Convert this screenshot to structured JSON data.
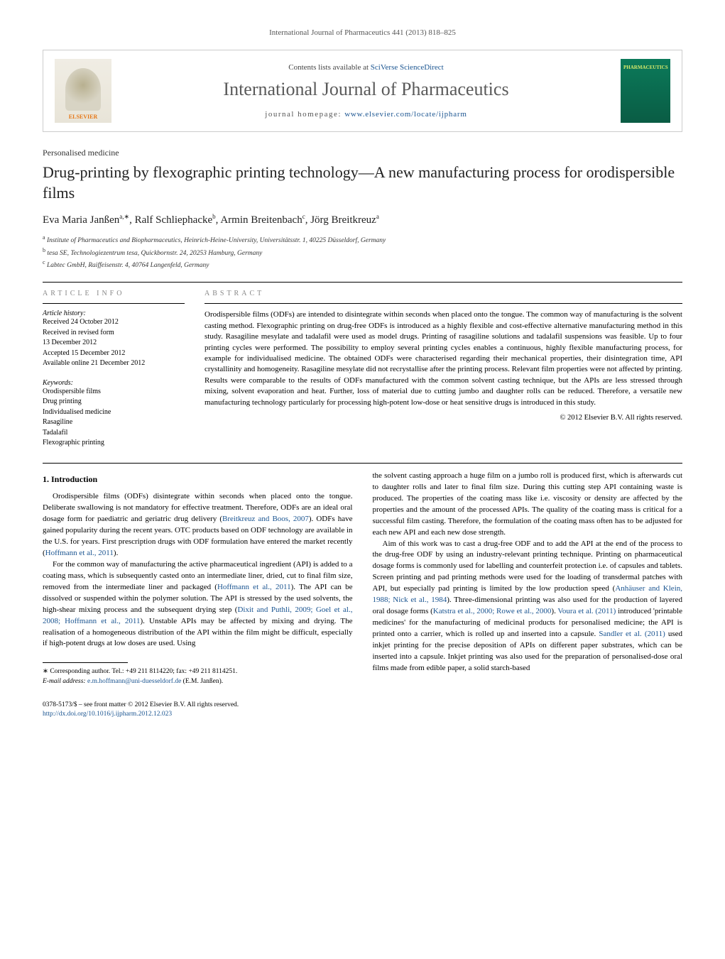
{
  "header": {
    "citation_prefix": "International Journal of Pharmaceutics 441 (2013) 818–825",
    "contents_prefix": "Contents lists available at ",
    "contents_link": "SciVerse ScienceDirect",
    "journal_title": "International Journal of Pharmaceutics",
    "homepage_prefix": "journal homepage: ",
    "homepage_link": "www.elsevier.com/locate/ijpharm",
    "publisher_logo_label": "ELSEVIER",
    "cover_label": "PHARMACEUTICS"
  },
  "article": {
    "section": "Personalised medicine",
    "title": "Drug-printing by flexographic printing technology—A new manufacturing process for orodispersible films",
    "authors_html": "Eva Maria Janßen|a,∗|, Ralf Schliephacke|b|, Armin Breitenbach|c|, Jörg Breitkreuz|a|",
    "authors": [
      {
        "name": "Eva Maria Janßen",
        "marks": "a,∗"
      },
      {
        "name": "Ralf Schliephacke",
        "marks": "b"
      },
      {
        "name": "Armin Breitenbach",
        "marks": "c"
      },
      {
        "name": "Jörg Breitkreuz",
        "marks": "a"
      }
    ],
    "affiliations": [
      {
        "mark": "a",
        "text": "Institute of Pharmaceutics and Biopharmaceutics, Heinrich-Heine-University, Universitätsstr. 1, 40225 Düsseldorf, Germany"
      },
      {
        "mark": "b",
        "text": "tesa SE, Technologiezentrum tesa, Quickbornstr. 24, 20253 Hamburg, Germany"
      },
      {
        "mark": "c",
        "text": "Labtec GmbH, Raiffeisenstr. 4, 40764 Langenfeld, Germany"
      }
    ]
  },
  "info": {
    "heading": "ARTICLE INFO",
    "history_label": "Article history:",
    "history": [
      "Received 24 October 2012",
      "Received in revised form",
      "13 December 2012",
      "Accepted 15 December 2012",
      "Available online 21 December 2012"
    ],
    "keywords_label": "Keywords:",
    "keywords": [
      "Orodispersible films",
      "Drug printing",
      "Individualised medicine",
      "Rasagiline",
      "Tadalafil",
      "Flexographic printing"
    ]
  },
  "abstract": {
    "heading": "ABSTRACT",
    "text": "Orodispersible films (ODFs) are intended to disintegrate within seconds when placed onto the tongue. The common way of manufacturing is the solvent casting method. Flexographic printing on drug-free ODFs is introduced as a highly flexible and cost-effective alternative manufacturing method in this study. Rasagiline mesylate and tadalafil were used as model drugs. Printing of rasagiline solutions and tadalafil suspensions was feasible. Up to four printing cycles were performed. The possibility to employ several printing cycles enables a continuous, highly flexible manufacturing process, for example for individualised medicine. The obtained ODFs were characterised regarding their mechanical properties, their disintegration time, API crystallinity and homogeneity. Rasagiline mesylate did not recrystallise after the printing process. Relevant film properties were not affected by printing. Results were comparable to the results of ODFs manufactured with the common solvent casting technique, but the APIs are less stressed through mixing, solvent evaporation and heat. Further, loss of material due to cutting jumbo and daughter rolls can be reduced. Therefore, a versatile new manufacturing technology particularly for processing high-potent low-dose or heat sensitive drugs is introduced in this study.",
    "copyright": "© 2012 Elsevier B.V. All rights reserved."
  },
  "body": {
    "section1_heading": "1. Introduction",
    "para1": "Orodispersible films (ODFs) disintegrate within seconds when placed onto the tongue. Deliberate swallowing is not mandatory for effective treatment. Therefore, ODFs are an ideal oral dosage form for paediatric and geriatric drug delivery (",
    "para1_ref1": "Breitkreuz and Boos, 2007",
    "para1_b": "). ODFs have gained popularity during the recent years. OTC products based on ODF technology are available in the U.S. for years. First prescription drugs with ODF formulation have entered the market recently (",
    "para1_ref2": "Hoffmann et al., 2011",
    "para1_c": ").",
    "para2": "For the common way of manufacturing the active pharmaceutical ingredient (API) is added to a coating mass, which is subsequently casted onto an intermediate liner, dried, cut to final film size, removed from the intermediate liner and packaged (",
    "para2_ref1": "Hoffmann et al., 2011",
    "para2_b": "). The API can be dissolved or suspended within the polymer solution. The API is stressed by the used solvents, the high-shear mixing process and the subsequent drying step (",
    "para2_ref2": "Dixit and Puthli, 2009; Goel et al., 2008; Hoffmann et al., 2011",
    "para2_c": "). Unstable APIs may be affected by mixing and drying. The realisation of a homogeneous distribution of the API within the film might be difficult, especially if high-potent drugs at low doses are used. Using",
    "para3": "the solvent casting approach a huge film on a jumbo roll is produced first, which is afterwards cut to daughter rolls and later to final film size. During this cutting step API containing waste is produced. The properties of the coating mass like i.e. viscosity or density are affected by the properties and the amount of the processed APIs. The quality of the coating mass is critical for a successful film casting. Therefore, the formulation of the coating mass often has to be adjusted for each new API and each new dose strength.",
    "para4": "Aim of this work was to cast a drug-free ODF and to add the API at the end of the process to the drug-free ODF by using an industry-relevant printing technique. Printing on pharmaceutical dosage forms is commonly used for labelling and counterfeit protection i.e. of capsules and tablets. Screen printing and pad printing methods were used for the loading of transdermal patches with API, but especially pad printing is limited by the low production speed (",
    "para4_ref1": "Anhäuser and Klein, 1988; Nick et al., 1984",
    "para4_b": "). Three-dimensional printing was also used for the production of layered oral dosage forms (",
    "para4_ref2": "Katstra et al., 2000; Rowe et al., 2000",
    "para4_c": "). ",
    "para4_ref3": "Voura et al. (2011)",
    "para4_d": " introduced 'printable medicines' for the manufacturing of medicinal products for personalised medicine; the API is printed onto a carrier, which is rolled up and inserted into a capsule. ",
    "para4_ref4": "Sandler et al. (2011)",
    "para4_e": " used inkjet printing for the precise deposition of APIs on different paper substrates, which can be inserted into a capsule. Inkjet printing was also used for the preparation of personalised-dose oral films made from edible paper, a solid starch-based"
  },
  "footnote": {
    "corr": "∗ Corresponding author. Tel.: +49 211 8114220; fax: +49 211 8114251.",
    "email_label": "E-mail address: ",
    "email": "e.m.hoffmann@uni-duesseldorf.de",
    "email_tail": " (E.M. Janßen)."
  },
  "bottom": {
    "line1": "0378-5173/$ – see front matter © 2012 Elsevier B.V. All rights reserved.",
    "doi": "http://dx.doi.org/10.1016/j.ijpharm.2012.12.023"
  },
  "colors": {
    "link": "#1a5490",
    "text": "#000000",
    "muted": "#888888",
    "cover_bg": "#0b7a5a",
    "publisher_orange": "#e67817"
  },
  "fontsizes": {
    "journal_title": 26,
    "article_title": 22,
    "authors": 15,
    "body": 11,
    "affiliations": 9.5,
    "info": 10,
    "block_head": 10,
    "footnote": 9.5
  }
}
